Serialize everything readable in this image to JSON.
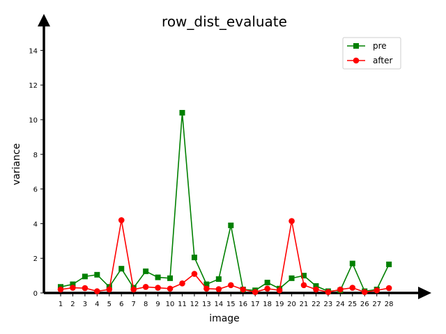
{
  "chart_data": {
    "type": "line",
    "title": "row_dist_evaluate",
    "xlabel": "image",
    "ylabel": "variance",
    "categories": [
      "1",
      "2",
      "3",
      "4",
      "5",
      "6",
      "7",
      "8",
      "9",
      "10",
      "11",
      "12",
      "13",
      "14",
      "15",
      "16",
      "17",
      "18",
      "19",
      "20",
      "21",
      "22",
      "23",
      "24",
      "25",
      "26",
      "27",
      "28"
    ],
    "y_ticks": [
      0,
      2,
      4,
      6,
      8,
      10,
      12,
      14
    ],
    "ylim": [
      0,
      15.5
    ],
    "grid": false,
    "legend_position": "top-right",
    "series": [
      {
        "name": "pre",
        "color": "#008000",
        "marker": "square",
        "values": [
          0.35,
          0.5,
          0.95,
          1.05,
          0.35,
          1.4,
          0.3,
          1.25,
          0.9,
          0.85,
          10.4,
          2.05,
          0.5,
          0.8,
          3.9,
          0.2,
          0.15,
          0.6,
          0.25,
          0.85,
          1.0,
          0.4,
          0.1,
          0.15,
          1.7,
          0.1,
          0.2,
          1.65
        ]
      },
      {
        "name": "after",
        "color": "#ff0000",
        "marker": "circle",
        "values": [
          0.2,
          0.3,
          0.28,
          0.1,
          0.2,
          4.2,
          0.2,
          0.35,
          0.3,
          0.25,
          0.55,
          1.1,
          0.25,
          0.22,
          0.45,
          0.2,
          0.05,
          0.25,
          0.15,
          4.15,
          0.45,
          0.2,
          0.05,
          0.2,
          0.3,
          0.05,
          0.15,
          0.28
        ]
      }
    ]
  }
}
